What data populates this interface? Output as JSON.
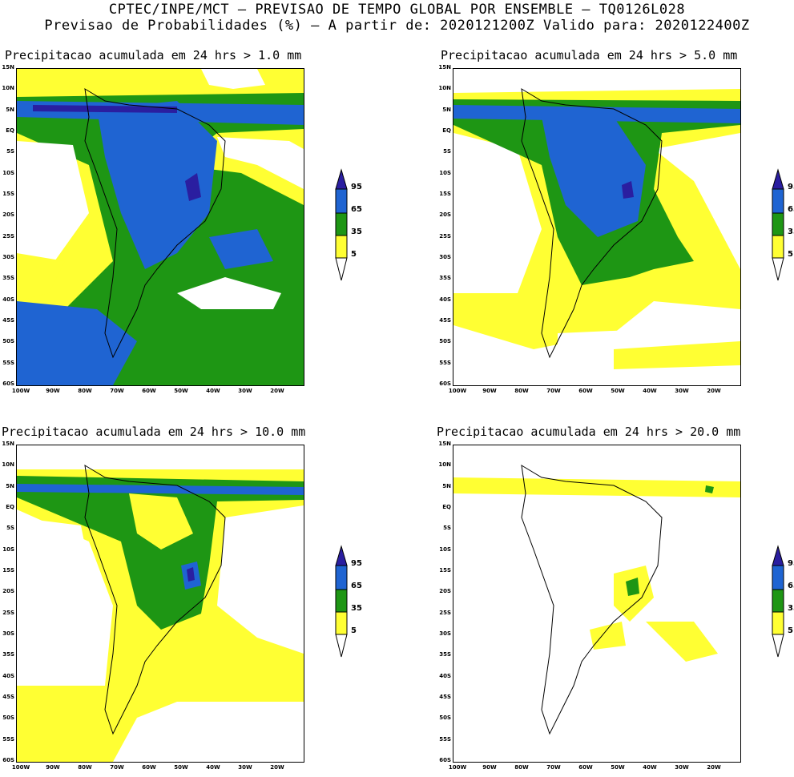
{
  "header": {
    "line1": "CPTEC/INPE/MCT – PREVISAO DE TEMPO GLOBAL POR ENSEMBLE – TQ0126L028",
    "line2": "Previsao de Probabilidades (%) –  A partir de: 2020121200Z  Valido para: 2020122400Z"
  },
  "colors": {
    "yellow": "#ffff33",
    "green": "#1e9614",
    "blue": "#1f64d2",
    "purple": "#2a1ea0",
    "white": "#ffffff"
  },
  "axes": {
    "lat_labels": [
      "15N",
      "10N",
      "5N",
      "EQ",
      "5S",
      "10S",
      "15S",
      "20S",
      "25S",
      "30S",
      "35S",
      "40S",
      "45S",
      "50S",
      "55S",
      "60S"
    ],
    "lon_labels": [
      "100W",
      "90W",
      "80W",
      "70W",
      "60W",
      "50W",
      "40W",
      "30W",
      "20W"
    ]
  },
  "legend": {
    "labels": [
      "95",
      "65",
      "35",
      "5"
    ]
  },
  "panels": [
    {
      "title": "Precipitacao acumulada em 24 hrs > 1.0 mm"
    },
    {
      "title": "Precipitacao acumulada em 24 hrs > 5.0 mm"
    },
    {
      "title": "Precipitacao acumulada em 24 hrs > 10.0 mm"
    },
    {
      "title": "Precipitacao acumulada em 24 hrs > 20.0 mm"
    }
  ]
}
